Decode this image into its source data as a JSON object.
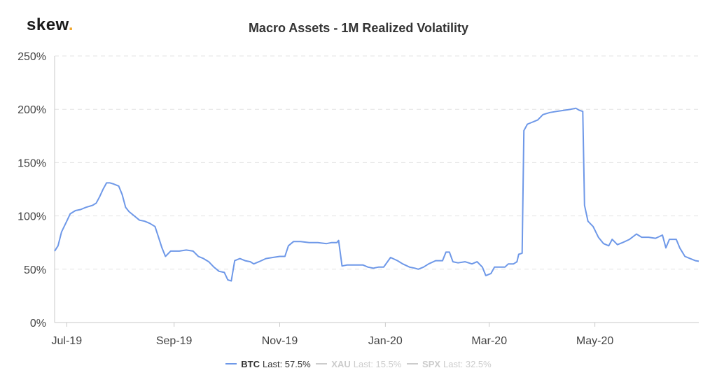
{
  "brand": {
    "name": "skew",
    "dot": "."
  },
  "chart_data": {
    "type": "line",
    "title": "Macro Assets - 1M Realized Volatility",
    "xlabel": "",
    "ylabel": "",
    "ylim": [
      0,
      250
    ],
    "yticks": [
      "0%",
      "50%",
      "100%",
      "150%",
      "200%",
      "250%"
    ],
    "ytick_values": [
      0,
      50,
      100,
      150,
      200,
      250
    ],
    "xlim": [
      "2019-06-24",
      "2020-06-30"
    ],
    "xticks": [
      {
        "label": "Jul-19",
        "date": "2019-07-01"
      },
      {
        "label": "Sep-19",
        "date": "2019-09-01"
      },
      {
        "label": "Nov-19",
        "date": "2019-11-01"
      },
      {
        "label": "Jan-20",
        "date": "2020-01-01"
      },
      {
        "label": "Mar-20",
        "date": "2020-03-01"
      },
      {
        "label": "May-20",
        "date": "2020-05-01"
      }
    ],
    "grid": "horizontal-dashed",
    "legend_position": "bottom",
    "series": [
      {
        "name": "BTC",
        "last_text": "Last: 57.5%",
        "color": "#6e98e8",
        "visible": true,
        "points": [
          [
            "2019-06-24",
            67
          ],
          [
            "2019-06-26",
            72
          ],
          [
            "2019-06-28",
            85
          ],
          [
            "2019-07-01",
            95
          ],
          [
            "2019-07-03",
            102
          ],
          [
            "2019-07-06",
            105
          ],
          [
            "2019-07-09",
            106
          ],
          [
            "2019-07-12",
            108
          ],
          [
            "2019-07-16",
            110
          ],
          [
            "2019-07-18",
            112
          ],
          [
            "2019-07-20",
            118
          ],
          [
            "2019-07-22",
            125
          ],
          [
            "2019-07-24",
            131
          ],
          [
            "2019-07-26",
            131
          ],
          [
            "2019-07-28",
            130
          ],
          [
            "2019-07-31",
            128
          ],
          [
            "2019-08-02",
            120
          ],
          [
            "2019-08-04",
            108
          ],
          [
            "2019-08-06",
            104
          ],
          [
            "2019-08-09",
            100
          ],
          [
            "2019-08-12",
            96
          ],
          [
            "2019-08-15",
            95
          ],
          [
            "2019-08-18",
            93
          ],
          [
            "2019-08-21",
            90
          ],
          [
            "2019-08-23",
            80
          ],
          [
            "2019-08-25",
            70
          ],
          [
            "2019-08-27",
            62
          ],
          [
            "2019-08-30",
            67
          ],
          [
            "2019-09-04",
            67
          ],
          [
            "2019-09-08",
            68
          ],
          [
            "2019-09-12",
            67
          ],
          [
            "2019-09-15",
            62
          ],
          [
            "2019-09-18",
            60
          ],
          [
            "2019-09-21",
            57
          ],
          [
            "2019-09-24",
            52
          ],
          [
            "2019-09-27",
            48
          ],
          [
            "2019-09-30",
            47
          ],
          [
            "2019-10-02",
            40
          ],
          [
            "2019-10-04",
            39
          ],
          [
            "2019-10-06",
            58
          ],
          [
            "2019-10-09",
            60
          ],
          [
            "2019-10-12",
            58
          ],
          [
            "2019-10-15",
            57
          ],
          [
            "2019-10-17",
            55
          ],
          [
            "2019-10-20",
            57
          ],
          [
            "2019-10-24",
            60
          ],
          [
            "2019-10-28",
            61
          ],
          [
            "2019-11-01",
            62
          ],
          [
            "2019-11-04",
            62
          ],
          [
            "2019-11-06",
            72
          ],
          [
            "2019-11-09",
            76
          ],
          [
            "2019-11-13",
            76
          ],
          [
            "2019-11-18",
            75
          ],
          [
            "2019-11-23",
            75
          ],
          [
            "2019-11-28",
            74
          ],
          [
            "2019-12-01",
            75
          ],
          [
            "2019-12-04",
            75
          ],
          [
            "2019-12-05",
            77
          ],
          [
            "2019-12-07",
            53
          ],
          [
            "2019-12-10",
            54
          ],
          [
            "2019-12-15",
            54
          ],
          [
            "2019-12-19",
            54
          ],
          [
            "2019-12-22",
            52
          ],
          [
            "2019-12-25",
            51
          ],
          [
            "2019-12-28",
            52
          ],
          [
            "2019-12-31",
            52
          ],
          [
            "2020-01-04",
            61
          ],
          [
            "2020-01-08",
            58
          ],
          [
            "2020-01-11",
            55
          ],
          [
            "2020-01-15",
            52
          ],
          [
            "2020-01-18",
            51
          ],
          [
            "2020-01-20",
            50
          ],
          [
            "2020-01-23",
            52
          ],
          [
            "2020-01-26",
            55
          ],
          [
            "2020-01-30",
            58
          ],
          [
            "2020-02-03",
            58
          ],
          [
            "2020-02-05",
            66
          ],
          [
            "2020-02-07",
            66
          ],
          [
            "2020-02-09",
            57
          ],
          [
            "2020-02-12",
            56
          ],
          [
            "2020-02-16",
            57
          ],
          [
            "2020-02-20",
            55
          ],
          [
            "2020-02-23",
            57
          ],
          [
            "2020-02-26",
            52
          ],
          [
            "2020-02-28",
            44
          ],
          [
            "2020-03-02",
            46
          ],
          [
            "2020-03-04",
            52
          ],
          [
            "2020-03-07",
            52
          ],
          [
            "2020-03-10",
            52
          ],
          [
            "2020-03-12",
            55
          ],
          [
            "2020-03-15",
            55
          ],
          [
            "2020-03-17",
            57
          ],
          [
            "2020-03-18",
            64
          ],
          [
            "2020-03-20",
            65
          ],
          [
            "2020-03-21",
            180
          ],
          [
            "2020-03-23",
            186
          ],
          [
            "2020-03-26",
            188
          ],
          [
            "2020-03-29",
            190
          ],
          [
            "2020-04-01",
            195
          ],
          [
            "2020-04-05",
            197
          ],
          [
            "2020-04-09",
            198
          ],
          [
            "2020-04-13",
            199
          ],
          [
            "2020-04-17",
            200
          ],
          [
            "2020-04-20",
            201
          ],
          [
            "2020-04-22",
            199
          ],
          [
            "2020-04-24",
            198
          ],
          [
            "2020-04-25",
            110
          ],
          [
            "2020-04-27",
            95
          ],
          [
            "2020-04-30",
            90
          ],
          [
            "2020-05-03",
            80
          ],
          [
            "2020-05-06",
            74
          ],
          [
            "2020-05-09",
            72
          ],
          [
            "2020-05-11",
            78
          ],
          [
            "2020-05-14",
            73
          ],
          [
            "2020-05-17",
            75
          ],
          [
            "2020-05-21",
            78
          ],
          [
            "2020-05-25",
            83
          ],
          [
            "2020-05-28",
            80
          ],
          [
            "2020-06-01",
            80
          ],
          [
            "2020-06-05",
            79
          ],
          [
            "2020-06-09",
            82
          ],
          [
            "2020-06-11",
            70
          ],
          [
            "2020-06-13",
            78
          ],
          [
            "2020-06-17",
            78
          ],
          [
            "2020-06-19",
            70
          ],
          [
            "2020-06-22",
            62
          ],
          [
            "2020-06-25",
            60
          ],
          [
            "2020-06-28",
            58
          ],
          [
            "2020-06-30",
            57.5
          ]
        ]
      },
      {
        "name": "XAU",
        "last_text": "Last: 15.5%",
        "color": "#cccccc",
        "visible": false
      },
      {
        "name": "SPX",
        "last_text": "Last: 32.5%",
        "color": "#cccccc",
        "visible": false
      }
    ]
  }
}
